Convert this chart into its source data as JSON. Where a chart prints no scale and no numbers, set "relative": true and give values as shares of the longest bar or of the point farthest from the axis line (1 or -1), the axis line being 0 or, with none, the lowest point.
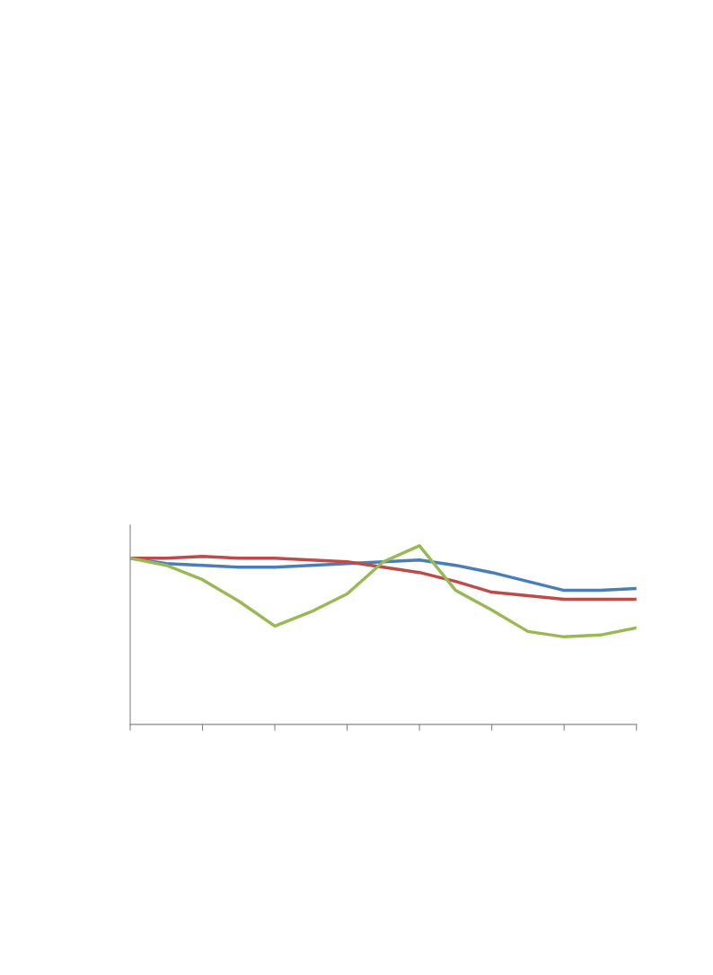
{
  "chart_data": {
    "type": "line",
    "relative": true,
    "categories": [
      null,
      null,
      null,
      null,
      null,
      null,
      null,
      null,
      null,
      null,
      null,
      null,
      null,
      null,
      null
    ],
    "series": [
      {
        "color": "#4a7ebb",
        "values": [
          0.93,
          0.9,
          0.89,
          0.88,
          0.88,
          0.89,
          0.9,
          0.91,
          0.92,
          0.89,
          0.85,
          0.8,
          0.75,
          0.75,
          0.76
        ]
      },
      {
        "color": "#be4b48",
        "values": [
          0.93,
          0.93,
          0.94,
          0.93,
          0.93,
          0.92,
          0.91,
          0.88,
          0.85,
          0.8,
          0.74,
          0.72,
          0.7,
          0.7,
          0.7
        ]
      },
      {
        "color": "#98b954",
        "values": [
          0.93,
          0.89,
          0.81,
          0.69,
          0.55,
          0.63,
          0.73,
          0.91,
          1,
          0.75,
          0.64,
          0.52,
          0.49,
          0.5,
          0.54
        ]
      }
    ],
    "grid": false,
    "legend": false,
    "marker": "none",
    "line_style": "solid"
  }
}
